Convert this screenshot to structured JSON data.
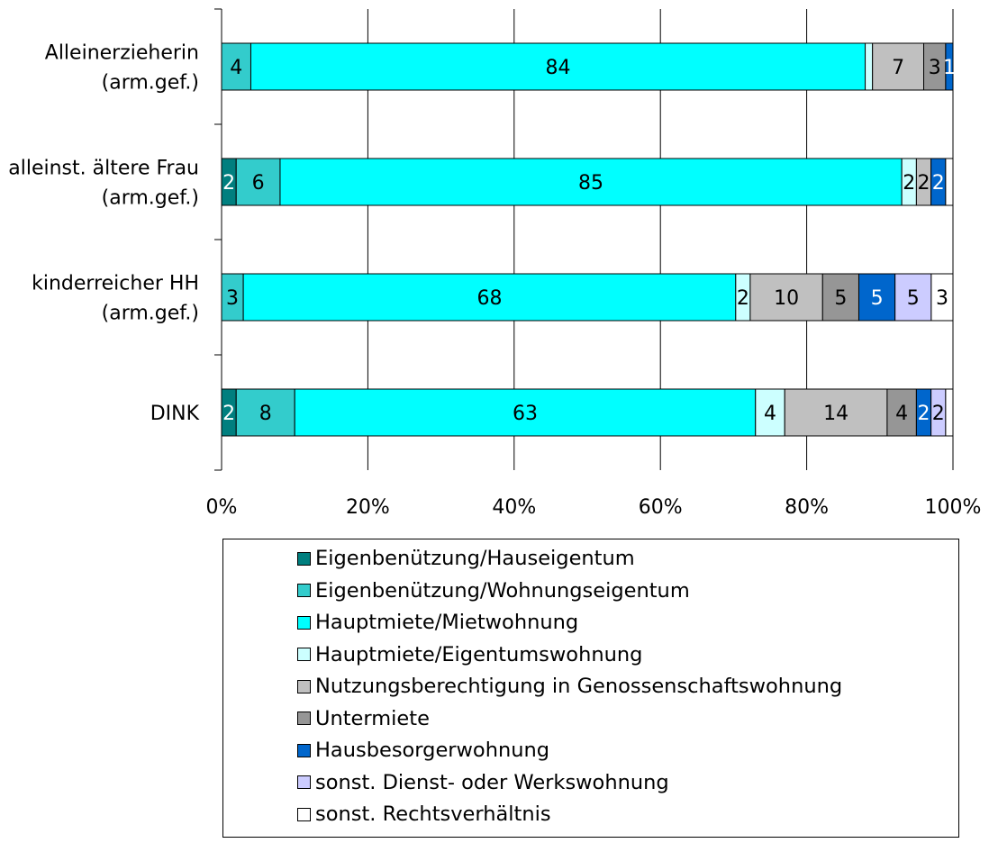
{
  "chart_data": {
    "type": "bar",
    "orientation": "horizontal",
    "stacked": "percent",
    "categories": [
      [
        "Alleinerzieherin",
        "(arm.gef.)"
      ],
      [
        "alleinst. ältere Frau",
        "(arm.gef.)"
      ],
      [
        "kinderreicher HH",
        "(arm.gef.)"
      ],
      [
        "DINK"
      ]
    ],
    "x_ticks": [
      "0%",
      "20%",
      "40%",
      "60%",
      "80%",
      "100%"
    ],
    "xlim": [
      0,
      100
    ],
    "grid": "vertical",
    "legend_position": "bottom",
    "series": [
      {
        "name": "Eigenbenützung/Hauseigentum",
        "color": "#007F7F",
        "label_color": "#ffffff",
        "values": [
          0,
          2,
          0,
          2
        ]
      },
      {
        "name": "Eigenbenützung/Wohnungseigentum",
        "color": "#33CCCC",
        "label_color": "#000000",
        "values": [
          4,
          6,
          3,
          8
        ]
      },
      {
        "name": "Hauptmiete/Mietwohnung",
        "color": "#00FFFF",
        "label_color": "#000000",
        "values": [
          84,
          85,
          68,
          63
        ]
      },
      {
        "name": "Hauptmiete/Eigentumswohnung",
        "color": "#CCFFFF",
        "label_color": "#000000",
        "values": [
          1,
          2,
          2,
          4
        ]
      },
      {
        "name": "Nutzungsberechtigung in Genossenschaftswohnung",
        "color": "#C0C0C0",
        "label_color": "#000000",
        "values": [
          7,
          2,
          10,
          14
        ]
      },
      {
        "name": "Untermiete",
        "color": "#969696",
        "label_color": "#000000",
        "values": [
          3,
          0,
          5,
          4
        ]
      },
      {
        "name": "Hausbesorgerwohnung",
        "color": "#0066CC",
        "label_color": "#ffffff",
        "values": [
          1,
          2,
          5,
          2
        ]
      },
      {
        "name": "sonst. Dienst- oder Werkswohnung",
        "color": "#CCCCFF",
        "label_color": "#000000",
        "values": [
          0,
          0,
          5,
          2
        ]
      },
      {
        "name": "sonst. Rechtsverhältnis",
        "color": "#FFFFFF",
        "label_color": "#000000",
        "values": [
          0,
          1,
          3,
          1
        ]
      }
    ],
    "data_labels": [
      [
        "",
        "4",
        "84",
        "",
        "7",
        "3",
        "1",
        "",
        ""
      ],
      [
        "2",
        "6",
        "85",
        "2",
        "2",
        "",
        "2",
        "",
        ""
      ],
      [
        "",
        "3",
        "68",
        "2",
        "10",
        "5",
        "5",
        "5",
        "3"
      ],
      [
        "2",
        "8",
        "63",
        "4",
        "14",
        "4",
        "2",
        "2",
        ""
      ]
    ]
  }
}
